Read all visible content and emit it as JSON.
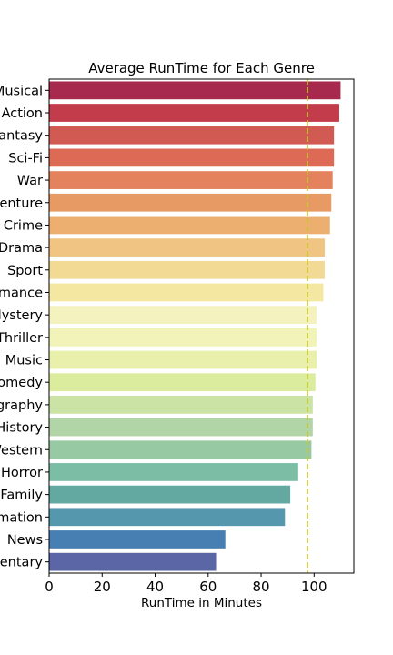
{
  "chart_data": {
    "type": "bar",
    "orientation": "horizontal",
    "title": "Average RunTime for Each Genre",
    "xlabel": "RunTime in Minutes",
    "ylabel": "",
    "xlim": [
      0,
      115
    ],
    "xticks": [
      0,
      20,
      40,
      60,
      80,
      100
    ],
    "categories": [
      "Musical",
      "Action",
      "Fantasy",
      "Sci-Fi",
      "War",
      "Adventure",
      "Crime",
      "Drama",
      "Sport",
      "Romance",
      "Mystery",
      "Thriller",
      "Music",
      "Comedy",
      "Biography",
      "History",
      "Western",
      "Horror",
      "Family",
      "Animation",
      "News",
      "Documentary"
    ],
    "values": [
      110,
      109.5,
      107.5,
      107.5,
      107,
      106.5,
      106,
      104,
      104,
      103.5,
      101,
      101,
      101,
      100.5,
      99.5,
      99.5,
      99,
      94,
      91,
      89,
      66.5,
      63
    ],
    "colors": [
      "#a7294e",
      "#c23c4c",
      "#d15a52",
      "#dd6a54",
      "#e3825d",
      "#e89a64",
      "#ecaf6f",
      "#f0c483",
      "#f2d994",
      "#f4e7a2",
      "#f4f3bf",
      "#f1f3b8",
      "#e8f0ac",
      "#dbec9f",
      "#cbe3a5",
      "#b2d5a8",
      "#97c9a3",
      "#7cbea5",
      "#64a8a2",
      "#5597ad",
      "#477fb3",
      "#5a66a5"
    ],
    "reference_line": {
      "value": 97.5,
      "style": "dashed",
      "color": "#c8c82a"
    },
    "grid": false
  }
}
